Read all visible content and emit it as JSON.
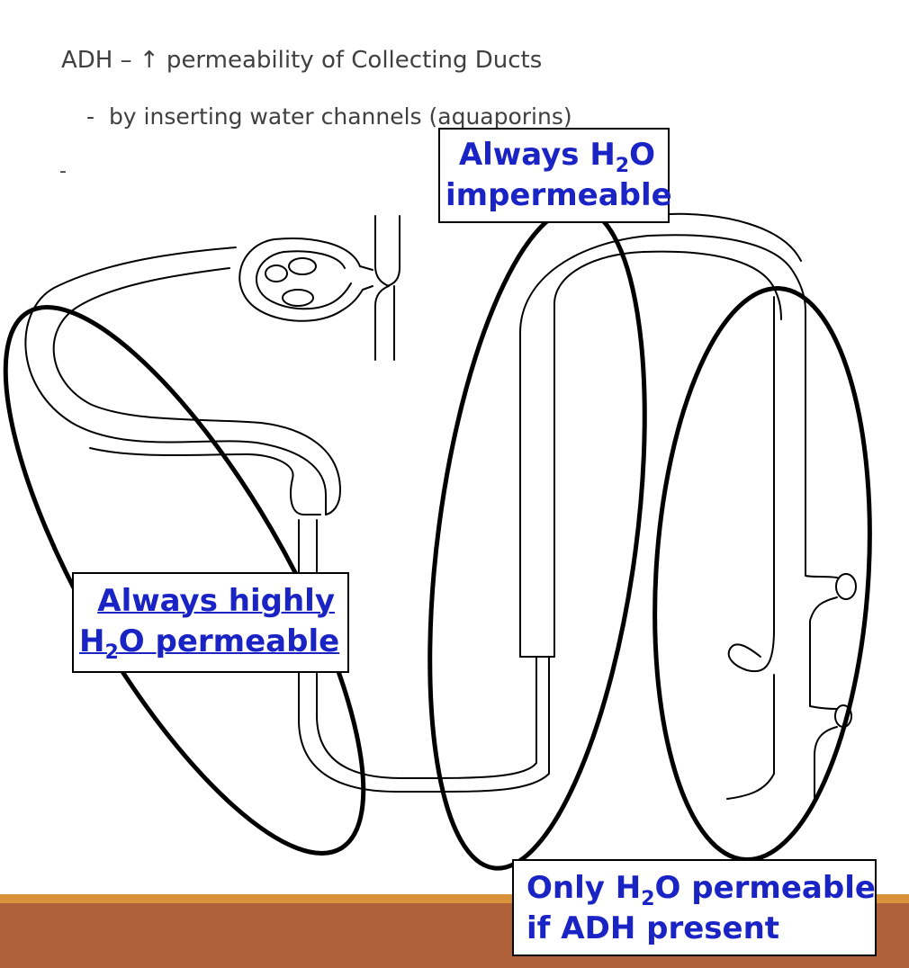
{
  "slide": {
    "heading": "ADH – ↑ permeability of Collecting Ducts",
    "bullet_marker": "-",
    "bullet_text": "by inserting water channels (aquaporins)",
    "second_bullet_marker": "-"
  },
  "callouts": {
    "top": {
      "line1_before": "Always H",
      "line1_sub": "2",
      "line1_after": "O",
      "line2": "impermeable"
    },
    "left": {
      "line1": "Always highly",
      "line2_before": "H",
      "line2_sub": "2",
      "line2_after": "O permeable"
    },
    "right": {
      "line1_before": "Only H",
      "line1_sub": "2",
      "line1_after": "O permeable",
      "line2": "if ADH present"
    }
  },
  "colors": {
    "callout_text": "#1a23c4",
    "body_text": "#404040",
    "footer_band": "#b0613a",
    "footer_line": "#d9923a",
    "outline": "#000000"
  }
}
